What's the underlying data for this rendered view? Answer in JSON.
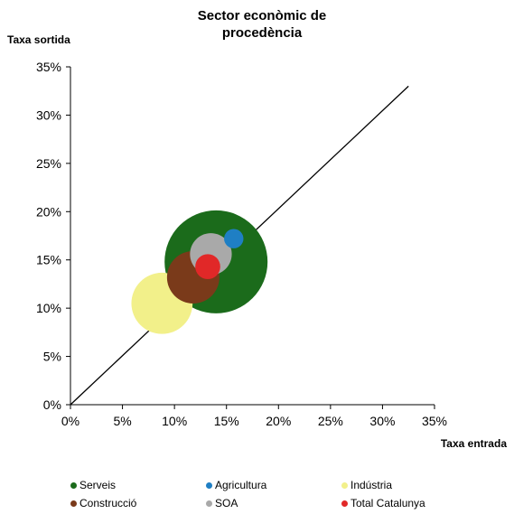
{
  "chart_data": {
    "type": "scatter",
    "title": "Sector econòmic de procedència",
    "xlabel": "Taxa entrada",
    "ylabel": "Taxa sortida",
    "xlim": [
      0,
      0.35
    ],
    "ylim": [
      0,
      0.35
    ],
    "x_ticks": [
      "0%",
      "5%",
      "10%",
      "15%",
      "20%",
      "25%",
      "30%",
      "35%"
    ],
    "y_ticks": [
      "0%",
      "5%",
      "10%",
      "15%",
      "20%",
      "25%",
      "30%",
      "35%"
    ],
    "reference_line": {
      "from": [
        0,
        0
      ],
      "to": [
        0.325,
        0.33
      ]
    },
    "grid": false,
    "legend_position": "bottom",
    "series": [
      {
        "name": "Serveis",
        "x": 0.14,
        "y": 0.148,
        "size": 0.85,
        "color": "#1b6b1b"
      },
      {
        "name": "Agricultura",
        "x": 0.157,
        "y": 0.172,
        "size": 0.03,
        "color": "#1f7fc4"
      },
      {
        "name": "Indústria",
        "x": 0.088,
        "y": 0.105,
        "size": 0.3,
        "color": "#f2f08a"
      },
      {
        "name": "Construcció",
        "x": 0.118,
        "y": 0.132,
        "size": 0.22,
        "color": "#7a3a1a"
      },
      {
        "name": "SOA",
        "x": 0.135,
        "y": 0.156,
        "size": 0.14,
        "color": "#a9a9a9"
      },
      {
        "name": "Total Catalunya",
        "x": 0.132,
        "y": 0.143,
        "size": 0.05,
        "color": "#e12828"
      }
    ]
  }
}
